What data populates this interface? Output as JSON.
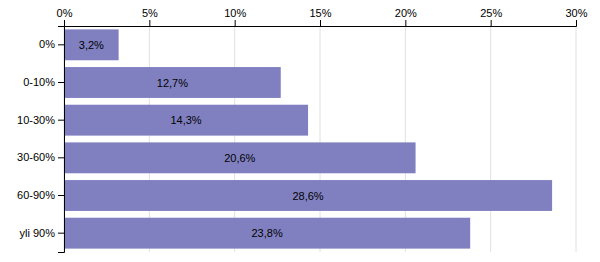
{
  "chart_data": {
    "type": "bar",
    "orientation": "horizontal",
    "categories": [
      "0%",
      "0-10%",
      "10-30%",
      "30-60%",
      "60-90%",
      "yli 90%"
    ],
    "values": [
      3.2,
      12.7,
      14.3,
      20.6,
      28.6,
      23.8
    ],
    "value_labels": [
      "3,2%",
      "12,7%",
      "14,3%",
      "20,6%",
      "28,6%",
      "23,8%"
    ],
    "data_labels": true,
    "color": "#8080c0",
    "xlim": [
      0,
      30
    ],
    "xticks": [
      {
        "value": 0,
        "label": "0%"
      },
      {
        "value": 5,
        "label": "5%"
      },
      {
        "value": 10,
        "label": "10%"
      },
      {
        "value": 15,
        "label": "15%"
      },
      {
        "value": 20,
        "label": "20%"
      },
      {
        "value": 25,
        "label": "25%"
      },
      {
        "value": 30,
        "label": "30%"
      }
    ],
    "grid": true
  }
}
